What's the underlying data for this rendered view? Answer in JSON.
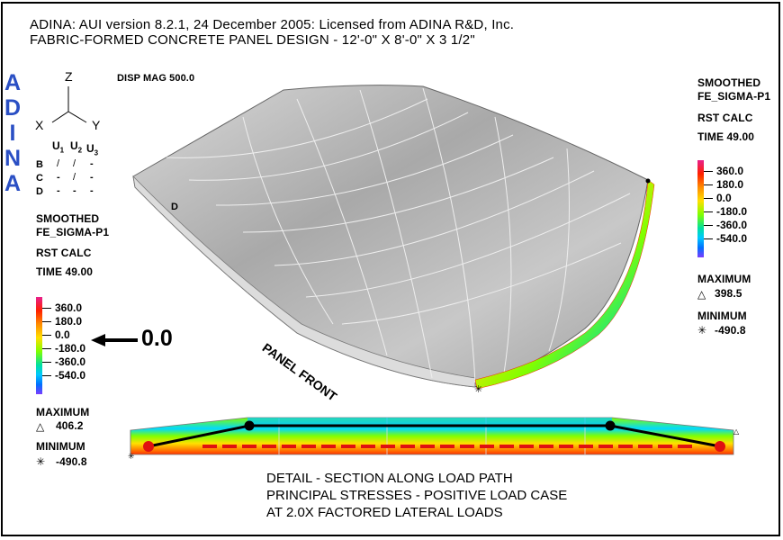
{
  "header": {
    "line1": "ADINA: AUI version 8.2.1, 24 December 2005: Licensed from ADINA R&D, Inc.",
    "line2": "FABRIC-FORMED CONCRETE PANEL DESIGN - 12'-0\" X 8'-0\" X 3 1/2\""
  },
  "logo": {
    "letters": [
      "A",
      "D",
      "I",
      "N",
      "A"
    ],
    "color": "#2a4fc4"
  },
  "disp_mag": "DISP MAG 500.0",
  "axes": {
    "z": "Z",
    "x": "X",
    "y": "Y"
  },
  "bc_table": {
    "cols": [
      "U",
      "U",
      "U"
    ],
    "subs": [
      "1",
      "2",
      "3"
    ],
    "rows": [
      {
        "name": "B",
        "vals": [
          "/",
          "/",
          "-"
        ]
      },
      {
        "name": "C",
        "vals": [
          "-",
          "/",
          "-"
        ]
      },
      {
        "name": "D",
        "vals": [
          "-",
          "-",
          "-"
        ]
      }
    ]
  },
  "left_legend": {
    "lines": [
      "SMOOTHED",
      "FE_SIGMA-P1",
      "RST CALC",
      "TIME 49.00"
    ],
    "ticks": [
      "360.0",
      "180.0",
      "0.0",
      "-180.0",
      "-360.0",
      "-540.0"
    ],
    "max_label": "MAXIMUM",
    "max_value": "406.2",
    "min_label": "MINIMUM",
    "min_value": "-490.8"
  },
  "right_legend": {
    "lines": [
      "SMOOTHED",
      "FE_SIGMA-P1",
      "RST CALC",
      "TIME 49.00"
    ],
    "ticks": [
      "360.0",
      "180.0",
      "0.0",
      "-180.0",
      "-360.0",
      "-540.0"
    ],
    "max_label": "MAXIMUM",
    "max_value": "398.5",
    "min_label": "MINIMUM",
    "min_value": "-490.8"
  },
  "callout": "0.0",
  "node_label_d": "D",
  "panel_front": "PANEL FRONT",
  "detail": [
    "DETAIL - SECTION ALONG LOAD PATH",
    "PRINCIPAL STRESSES - POSITIVE LOAD CASE",
    "AT 2.0X FACTORED LATERAL LOADS"
  ],
  "colors": {
    "band": [
      "#e8208c",
      "#ff2000",
      "#ff8c00",
      "#ffe000",
      "#80ff00",
      "#00e0a0",
      "#00c8ff",
      "#0070ff",
      "#7a3cff"
    ],
    "mesh": "#b8b8b8",
    "load_path_red": "#e01010"
  },
  "symbols": {
    "max": "△",
    "min": "✳"
  }
}
